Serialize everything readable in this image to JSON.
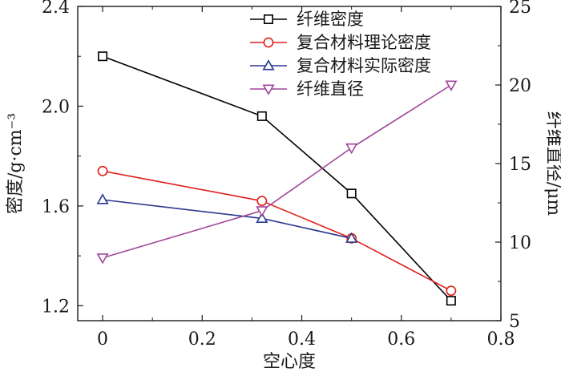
{
  "chart_data": {
    "type": "line",
    "xlabel": "空心度",
    "ylabel_left": "密度/g·cm⁻³",
    "ylabel_right": "纤维直径/μm",
    "xlim": [
      -0.05,
      0.8
    ],
    "ylim_left": [
      1.14,
      2.4
    ],
    "ylim_right": [
      5,
      25
    ],
    "xticks": [
      "0",
      "0.2",
      "0.4",
      "0.6",
      "0.8"
    ],
    "xtick_values": [
      0,
      0.2,
      0.4,
      0.6,
      0.8
    ],
    "yticks_left": [
      "1.2",
      "1.6",
      "2.0",
      "2.4"
    ],
    "ytick_values_left": [
      1.2,
      1.6,
      2.0,
      2.4
    ],
    "yticks_right": [
      "5",
      "10",
      "15",
      "20",
      "25"
    ],
    "ytick_values_right": [
      5,
      10,
      15,
      20,
      25
    ],
    "legend_position": "top-right",
    "series": [
      {
        "name": "纤维密度",
        "axis": "left",
        "color": "#000000",
        "marker": "square",
        "x": [
          0,
          0.32,
          0.5,
          0.7
        ],
        "values": [
          2.2,
          1.96,
          1.65,
          1.22
        ]
      },
      {
        "name": "复合材料理论密度",
        "axis": "left",
        "color": "#e0201b",
        "marker": "circle",
        "x": [
          0,
          0.32,
          0.5,
          0.7
        ],
        "values": [
          1.74,
          1.62,
          1.47,
          1.26
        ]
      },
      {
        "name": "复合材料实际密度",
        "axis": "left",
        "color": "#2b3990",
        "marker": "triangle-up",
        "x": [
          0,
          0.32,
          0.5
        ],
        "values": [
          1.625,
          1.55,
          1.47
        ]
      },
      {
        "name": "纤维直径",
        "axis": "right",
        "color": "#a0469a",
        "marker": "triangle-down",
        "x": [
          0,
          0.32,
          0.5,
          0.7
        ],
        "values": [
          9,
          12,
          16,
          20
        ]
      }
    ]
  }
}
